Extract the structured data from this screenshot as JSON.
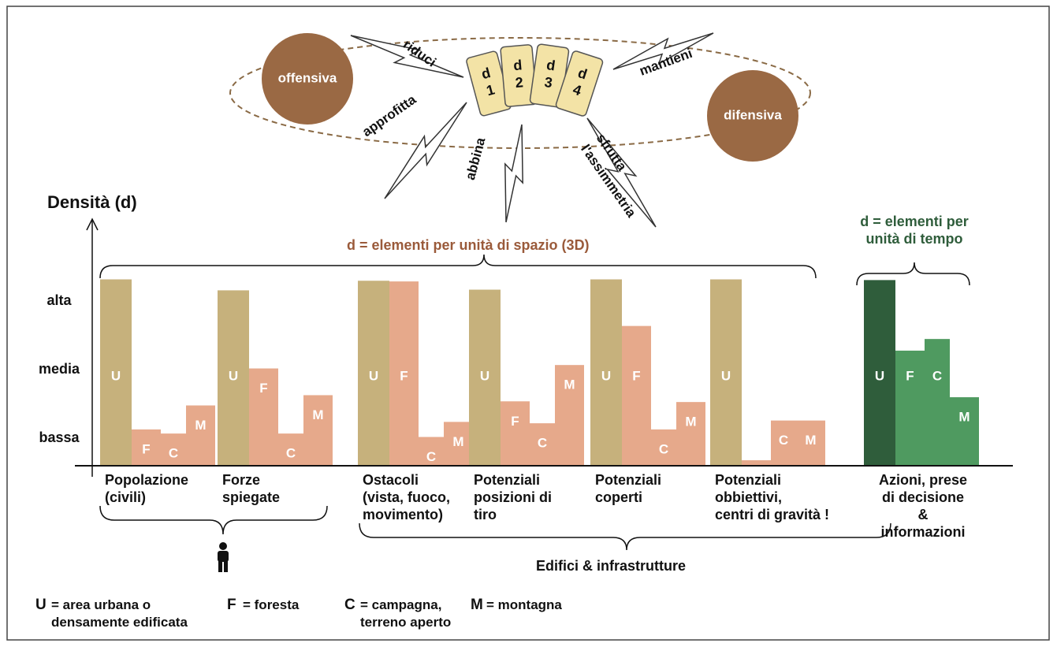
{
  "chart_data": {
    "type": "bar",
    "y_label": "Densità (d)",
    "categories": [
      "Popolazione\n(civili)",
      "Forze\nspiegate",
      "Ostacoli\n(vista, fuoco,\nmovimento)",
      "Potenziali\nposizioni di\ntiro",
      "Potenziali\ncoperti",
      "Potenziali\nobbiettivi,\ncentri di gravità !",
      "Azioni, prese\ndi decisione\n&\ninformazioni"
    ],
    "series": [
      {
        "name": "U",
        "description": "= area urbana o\ndensamente edificata",
        "colors": [
          "#c6b17c",
          "#c6b17c",
          "#c6b17c",
          "#c6b17c",
          "#c6b17c",
          "#c6b17c",
          "#2f5d3b"
        ],
        "values": [
          3.32,
          3.16,
          3.3,
          3.17,
          3.32,
          3.32,
          3.31
        ]
      },
      {
        "name": "F",
        "description": "= foresta",
        "colors": [
          "#e6a98b",
          "#e6a98b",
          "#e6a98b",
          "#e6a98b",
          "#e6a98b",
          "#e6a98b",
          "#4f9a60"
        ],
        "values": [
          1.13,
          2.02,
          3.29,
          1.54,
          2.64,
          0.68,
          2.28
        ]
      },
      {
        "name": "C",
        "description": "= campagna,\nterreno aperto",
        "colors": [
          "#e6a98b",
          "#e6a98b",
          "#e6a98b",
          "#e6a98b",
          "#e6a98b",
          "#e6a98b",
          "#4f9a60"
        ],
        "values": [
          1.07,
          1.07,
          1.02,
          1.22,
          1.13,
          1.26,
          2.45
        ]
      },
      {
        "name": "M",
        "description": "= montagna",
        "colors": [
          "#e6a98b",
          "#e6a98b",
          "#e6a98b",
          "#e6a98b",
          "#e6a98b",
          "#e6a98b",
          "#4f9a60"
        ],
        "values": [
          1.48,
          1.63,
          1.24,
          2.07,
          1.53,
          1.26,
          1.6
        ]
      }
    ],
    "ylim": [
      0.6,
      4.2
    ],
    "yticks": [
      {
        "value": 1,
        "label": "bassa"
      },
      {
        "value": 2,
        "label": "media"
      },
      {
        "value": 3,
        "label": "alta"
      }
    ],
    "grid": false,
    "annotations": {
      "space": "d = elementi per unità di spazio (3D)",
      "time": "d = elementi per\nunità di tempo",
      "buildings": "Edifici & infrastrutture"
    }
  },
  "strategy": {
    "offensive": "offensiva",
    "defensive": "difensiva",
    "cards": [
      {
        "letter": "d",
        "number": "1"
      },
      {
        "letter": "d",
        "number": "2"
      },
      {
        "letter": "d",
        "number": "3"
      },
      {
        "letter": "d",
        "number": "4"
      }
    ],
    "actions": [
      "riduci",
      "mantieni",
      "approfitta",
      "abbina",
      "sfrutta\nl'assimmetria"
    ]
  }
}
